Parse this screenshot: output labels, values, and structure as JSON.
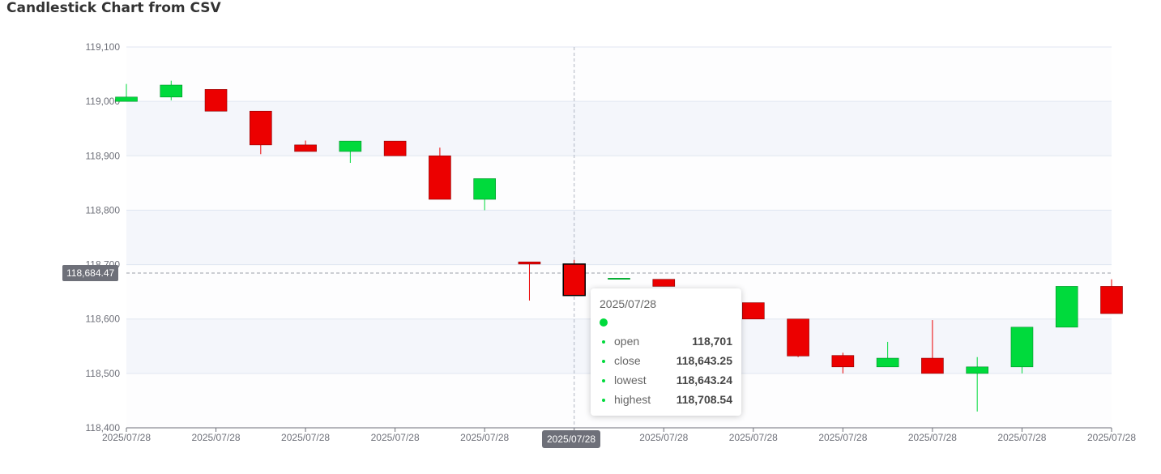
{
  "page": {
    "title": "Candlestick Chart from CSV"
  },
  "colors": {
    "up": "#00da3c",
    "up_border": "#008f28",
    "down": "#ec0000",
    "down_border": "#8a0000",
    "axis_text": "#6e7079",
    "grid": "#e0e6f1",
    "band": "#f4f6fb"
  },
  "chart_data": {
    "type": "candlestick",
    "ylim": [
      118400,
      119100
    ],
    "yticks": [
      119100,
      119000,
      118900,
      118800,
      118700,
      118600,
      118500,
      118400
    ],
    "ytick_labels": [
      "119,100",
      "119,000",
      "118,900",
      "118,800",
      "118,700",
      "118,600",
      "118,500",
      "118,400"
    ],
    "xtick_labels": [
      "2025/07/28",
      "2025/07/28",
      "2025/07/28",
      "2025/07/28",
      "2025/07/28",
      "2025/07/28",
      "2025/07/28",
      "2025/07/28",
      "2025/07/28",
      "2025/07/28",
      "2025/07/28",
      "2025/07/28"
    ],
    "grid": true,
    "candles": [
      {
        "date": "2025/07/28",
        "open": 119000,
        "close": 119008,
        "low": 119000,
        "high": 119032
      },
      {
        "date": "2025/07/28",
        "open": 119008,
        "close": 119030,
        "low": 119002,
        "high": 119038
      },
      {
        "date": "2025/07/28",
        "open": 119022,
        "close": 118982,
        "low": 118982,
        "high": 119022
      },
      {
        "date": "2025/07/28",
        "open": 118982,
        "close": 118920,
        "low": 118903,
        "high": 118982
      },
      {
        "date": "2025/07/28",
        "open": 118920,
        "close": 118908,
        "low": 118908,
        "high": 118928
      },
      {
        "date": "2025/07/28",
        "open": 118908,
        "close": 118927,
        "low": 118887,
        "high": 118927
      },
      {
        "date": "2025/07/28",
        "open": 118927,
        "close": 118900,
        "low": 118900,
        "high": 118927
      },
      {
        "date": "2025/07/28",
        "open": 118900,
        "close": 118820,
        "low": 118820,
        "high": 118915
      },
      {
        "date": "2025/07/28",
        "open": 118820,
        "close": 118858,
        "low": 118800,
        "high": 118858
      },
      {
        "date": "2025/07/28",
        "open": 118705,
        "close": 118701,
        "low": 118634,
        "high": 118705
      },
      {
        "date": "2025/07/28",
        "open": 118701,
        "close": 118643.25,
        "low": 118643.24,
        "high": 118708.54
      },
      {
        "date": "2025/07/28",
        "open": 118673,
        "close": 118675,
        "low": 118673,
        "high": 118675
      },
      {
        "date": "2025/07/28",
        "open": 118673,
        "close": 118660,
        "low": 118660,
        "high": 118673
      },
      {
        "date": "2025/07/28",
        "open": 118635,
        "close": 118625,
        "low": 118620,
        "high": 118640
      },
      {
        "date": "2025/07/28",
        "open": 118630,
        "close": 118600,
        "low": 118600,
        "high": 118630
      },
      {
        "date": "2025/07/28",
        "open": 118600,
        "close": 118532,
        "low": 118530,
        "high": 118600
      },
      {
        "date": "2025/07/28",
        "open": 118533,
        "close": 118512,
        "low": 118500,
        "high": 118538
      },
      {
        "date": "2025/07/28",
        "open": 118512,
        "close": 118528,
        "low": 118512,
        "high": 118558
      },
      {
        "date": "2025/07/28",
        "open": 118528,
        "close": 118500,
        "low": 118500,
        "high": 118598
      },
      {
        "date": "2025/07/28",
        "open": 118500,
        "close": 118512,
        "low": 118430,
        "high": 118530
      },
      {
        "date": "2025/07/28",
        "open": 118512,
        "close": 118585,
        "low": 118500,
        "high": 118585
      },
      {
        "date": "2025/07/28",
        "open": 118585,
        "close": 118660,
        "low": 118585,
        "high": 118660
      },
      {
        "date": "2025/07/28",
        "open": 118660,
        "close": 118610,
        "low": 118610,
        "high": 118673
      }
    ]
  },
  "axis_pointer": {
    "y_label": "118,684.47",
    "x_label": "2025/07/28",
    "y_value": 118684.47,
    "candle_index": 10
  },
  "tooltip": {
    "date": "2025/07/28",
    "rows": [
      {
        "label": "open",
        "value": "118,701"
      },
      {
        "label": "close",
        "value": "118,643.25"
      },
      {
        "label": "lowest",
        "value": "118,643.24"
      },
      {
        "label": "highest",
        "value": "118,708.54"
      }
    ]
  }
}
